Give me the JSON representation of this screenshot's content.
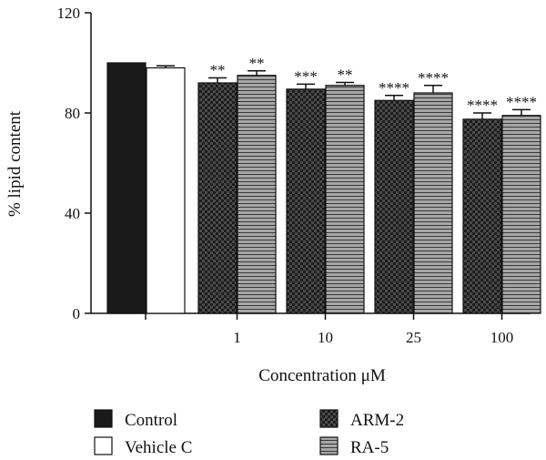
{
  "chart_data": {
    "type": "bar",
    "title": "",
    "xlabel": "Concentration μM",
    "ylabel": "% lipid content",
    "ylim": [
      0,
      120
    ],
    "yticks": [
      0,
      40,
      80,
      120
    ],
    "grid": false,
    "legend_position": "bottom",
    "controls": [
      {
        "name": "Control",
        "value": 100,
        "error": 0,
        "color": "#1a1a1a",
        "pattern": "solid-black"
      },
      {
        "name": "Vehicle C",
        "value": 98,
        "error": 0.8,
        "color": "#ffffff",
        "pattern": "solid-white"
      }
    ],
    "categories": [
      "1",
      "10",
      "25",
      "100"
    ],
    "series": [
      {
        "name": "ARM-2",
        "pattern": "checker",
        "values": [
          92,
          89.5,
          85,
          77.5
        ],
        "errors": [
          2,
          2,
          2,
          2.5
        ],
        "significance": [
          "**",
          "***",
          "****",
          "****"
        ]
      },
      {
        "name": "RA-5",
        "pattern": "stripes",
        "values": [
          95,
          91,
          88,
          79
        ],
        "errors": [
          1.8,
          1.2,
          3,
          2.3
        ],
        "significance": [
          "**",
          "**",
          "****",
          "****"
        ]
      }
    ]
  }
}
